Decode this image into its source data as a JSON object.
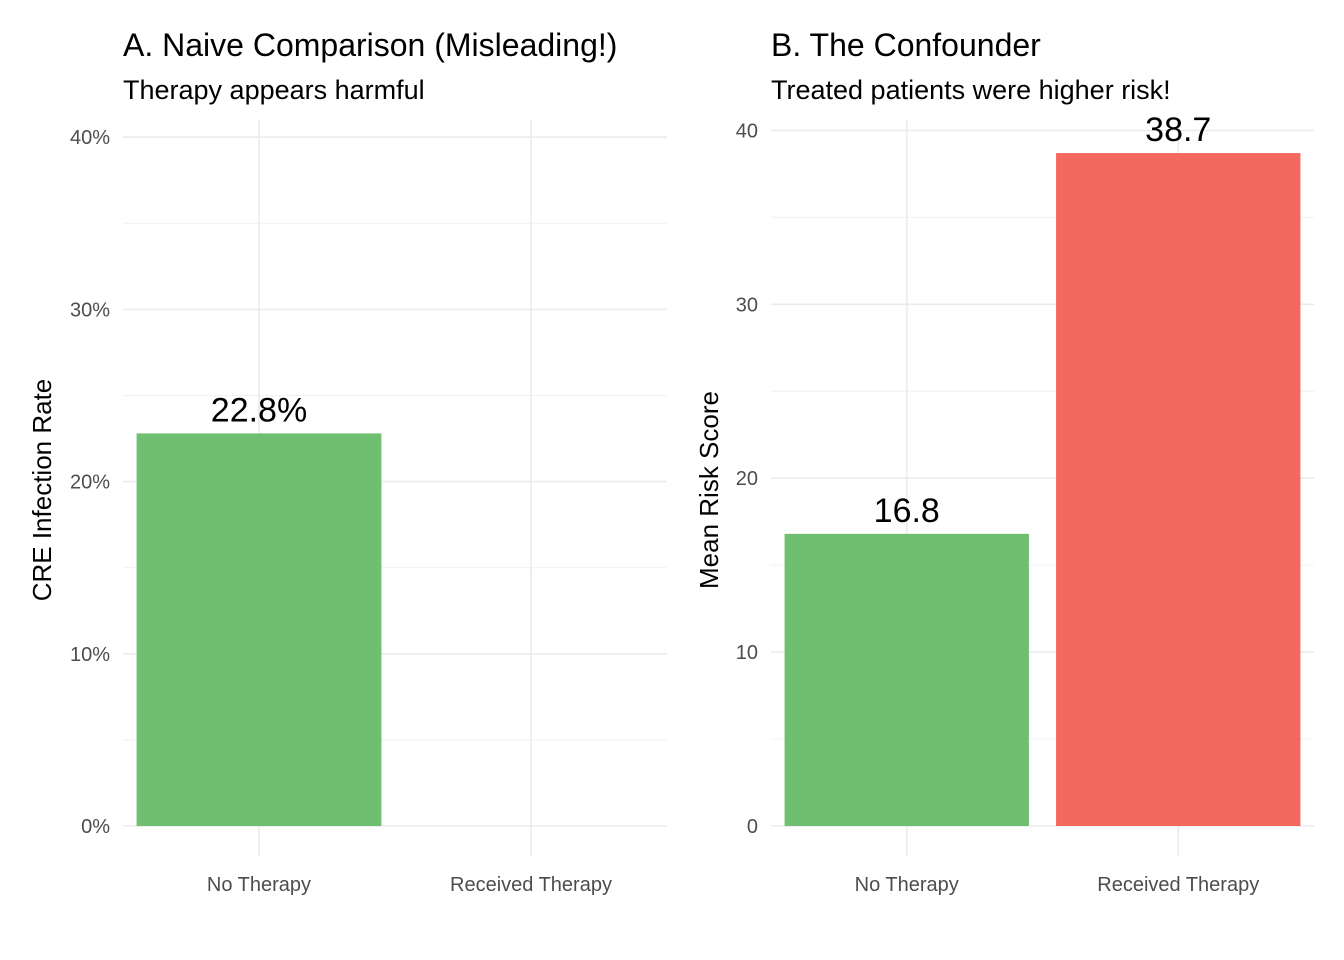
{
  "chart_data": [
    {
      "type": "bar",
      "title": "A. Naive Comparison (Misleading!)",
      "subtitle": "Therapy appears harmful",
      "xlabel": "",
      "ylabel": "CRE Infection Rate",
      "categories": [
        "No Therapy",
        "Received Therapy"
      ],
      "values": [
        0.228,
        null
      ],
      "data_labels": [
        "22.8%",
        ""
      ],
      "colors": [
        "#6dbd6d",
        "#f4665c"
      ],
      "ylim": [
        0,
        0.41
      ],
      "yticks": [
        0,
        0.1,
        0.2,
        0.3,
        0.4
      ],
      "ytick_labels": [
        "0%",
        "10%",
        "20%",
        "30%",
        "40%"
      ],
      "grid": true,
      "legend": "none"
    },
    {
      "type": "bar",
      "title": "B. The Confounder",
      "subtitle": "Treated patients were higher risk!",
      "xlabel": "",
      "ylabel": "Mean Risk Score",
      "categories": [
        "No Therapy",
        "Received Therapy"
      ],
      "values": [
        16.8,
        38.7
      ],
      "data_labels": [
        "16.8",
        "38.7"
      ],
      "colors": [
        "#6dbd6d",
        "#f4665c"
      ],
      "ylim": [
        0,
        40.6
      ],
      "yticks": [
        0,
        10,
        20,
        30,
        40
      ],
      "ytick_labels": [
        "0",
        "10",
        "20",
        "30",
        "40"
      ],
      "grid": true,
      "legend": "none"
    }
  ]
}
